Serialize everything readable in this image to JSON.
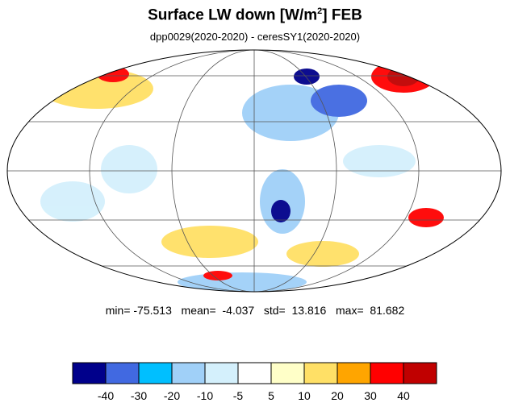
{
  "header": {
    "title_prefix": "Surface LW down [W/m",
    "title_sup": "2",
    "title_suffix": "]  FEB",
    "subtitle": "dpp0029(2020-2020) - ceresSY1(2020-2020)"
  },
  "stats": {
    "text": "min= -75.513   mean=  -4.037   std=  13.816   max=  81.682"
  },
  "colorbar": {
    "colors": [
      "#00008b",
      "#4169e1",
      "#00bfff",
      "#a0d0f8",
      "#d4f0fc",
      "#ffffff",
      "#ffffc8",
      "#ffe066",
      "#ffa500",
      "#ff0000",
      "#c00000"
    ],
    "labels": [
      "-40",
      "-30",
      "-20",
      "-10",
      "-5",
      "5",
      "10",
      "20",
      "30",
      "40"
    ]
  },
  "map": {
    "projection": "mollweide",
    "ocean_fill": "#ffffff",
    "positive_color": "#ffd700",
    "negative_color": "#a0d0f8",
    "graticule_color": "#555555"
  }
}
